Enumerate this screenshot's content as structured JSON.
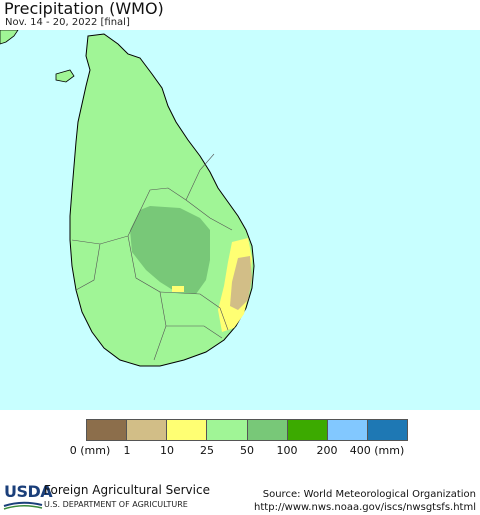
{
  "title": "Precipitation (WMO)",
  "subtitle": "Nov. 14 - 20, 2022 [final]",
  "legend": {
    "colors": [
      "#8c6e4b",
      "#d2be87",
      "#ffff73",
      "#a0f596",
      "#78c878",
      "#3caa00",
      "#82c8ff",
      "#1e78b4"
    ],
    "ticks": [
      "0 (mm)",
      "1",
      "10",
      "25",
      "50",
      "100",
      "200",
      "400 (mm)"
    ]
  },
  "map": {
    "water_color": "#c8ffff",
    "land_color": "#a0f596",
    "region": "Sri Lanka"
  },
  "footer": {
    "logo_text": "USDA",
    "agency": "Foreign Agricultural Service",
    "department": "U.S. DEPARTMENT OF AGRICULTURE",
    "source_line": "Source: World Meteorological Organization",
    "source_url": "http://www.nws.noaa.gov/iscs/nwsgtsfs.html"
  }
}
